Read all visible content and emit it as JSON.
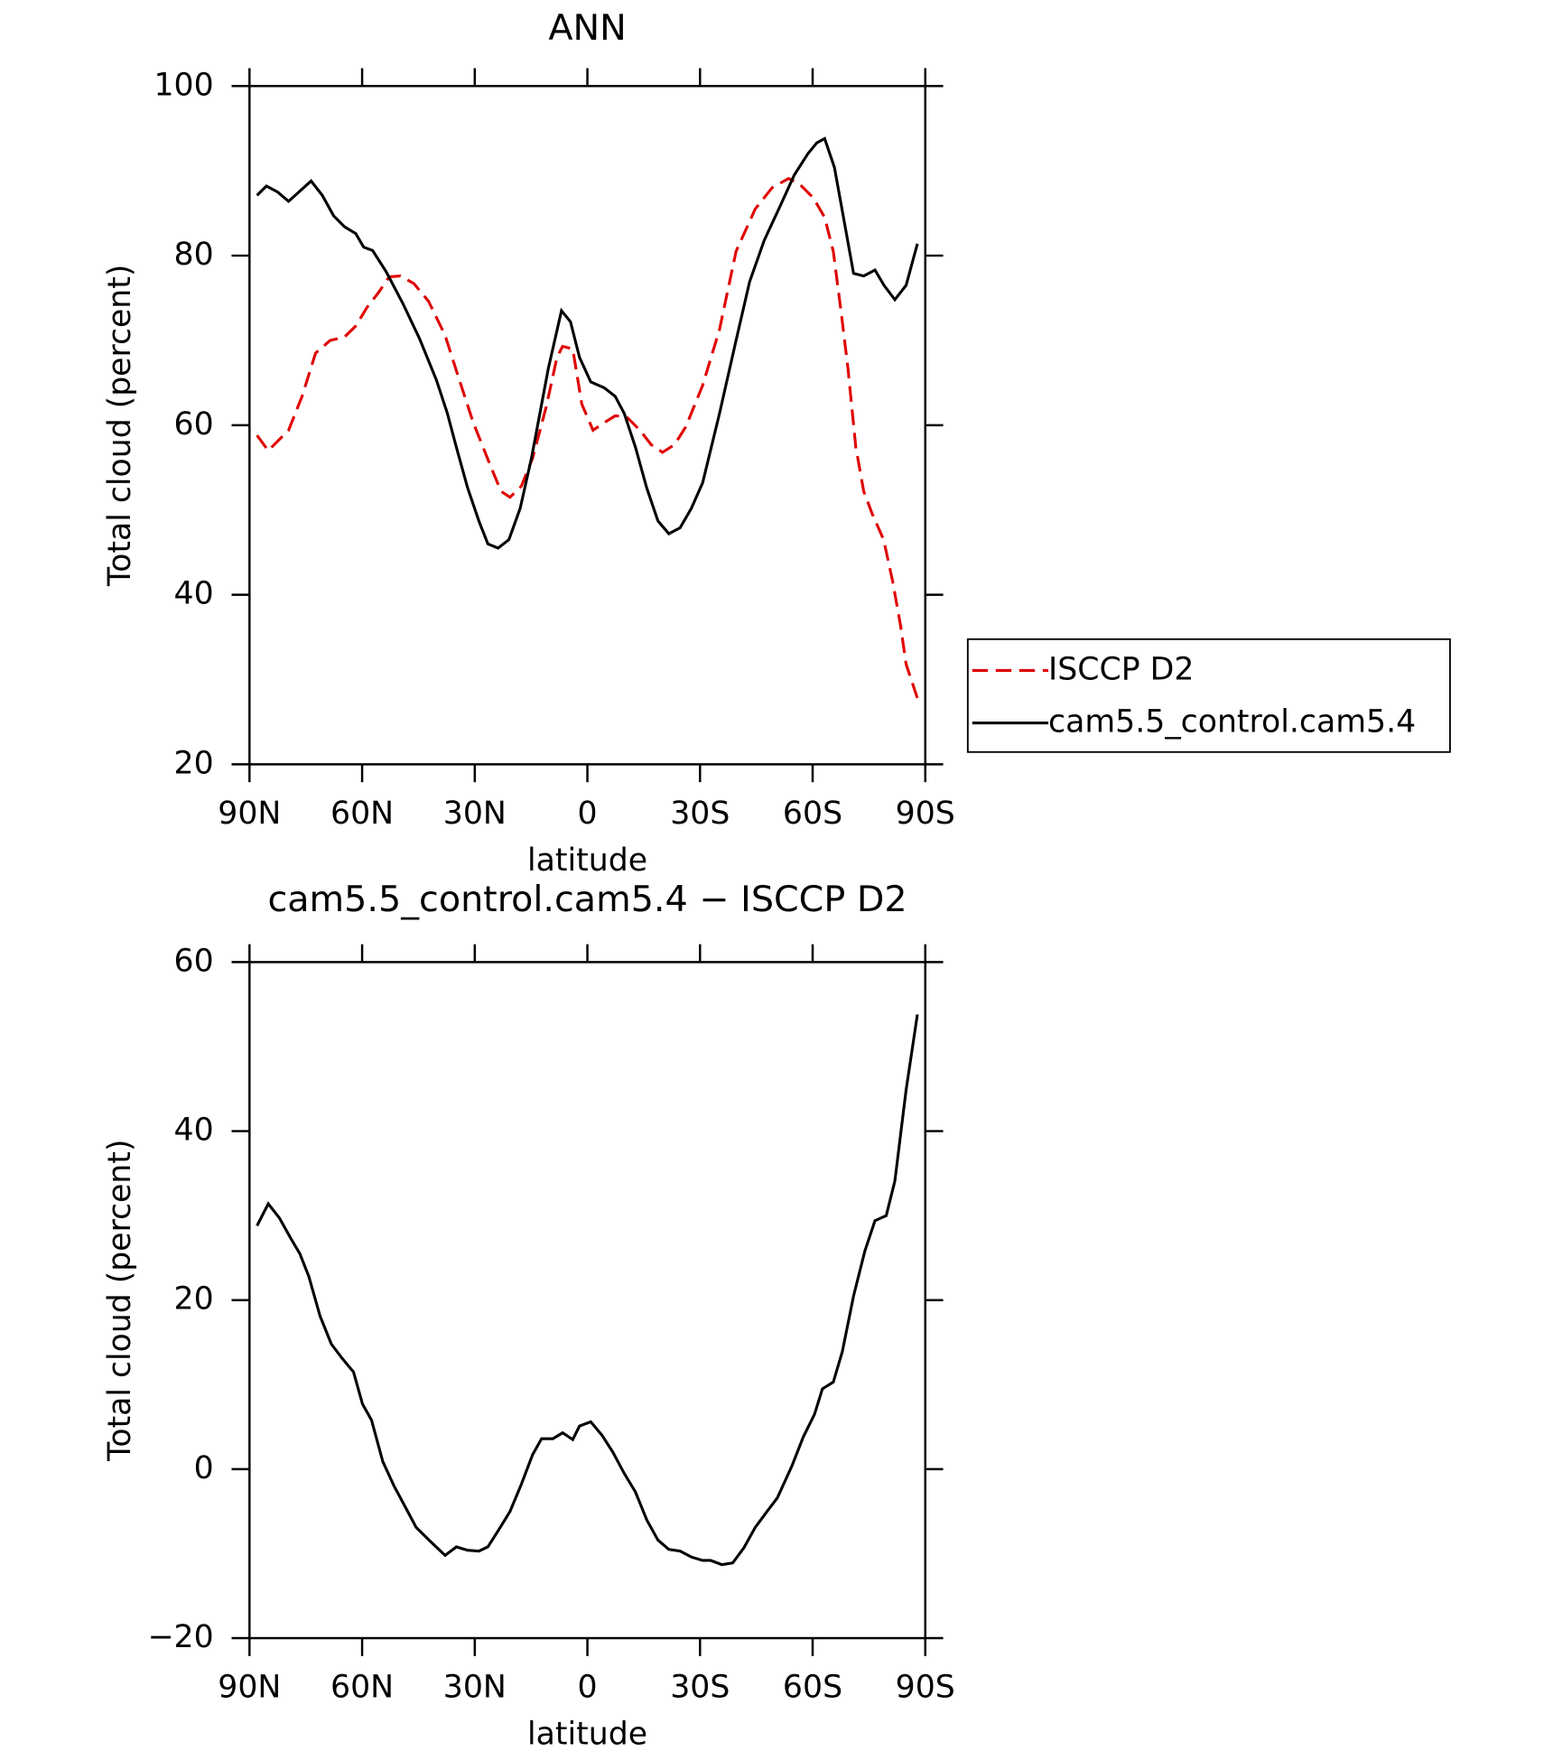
{
  "chart_data": [
    {
      "type": "line",
      "title": "ANN",
      "x_label": "latitude",
      "y_label": "Total cloud (percent)",
      "xlim": [
        90,
        -90
      ],
      "ylim": [
        20,
        100
      ],
      "xticks": [
        {
          "value": 90,
          "label": "90N"
        },
        {
          "value": 60,
          "label": "60N"
        },
        {
          "value": 30,
          "label": "30N"
        },
        0,
        {
          "value": -30,
          "label": "30S"
        },
        {
          "value": -60,
          "label": "60S"
        },
        {
          "value": -90,
          "label": "90S"
        }
      ],
      "yticks": [
        20,
        40,
        60,
        80,
        100
      ],
      "legend": "right",
      "series": [
        {
          "name": "ISCCP D2",
          "color": "#e00000",
          "dashed": true,
          "x": [
            88,
            85,
            79.6,
            76.0,
            72.4,
            68.5,
            64.7,
            61.7,
            58.7,
            55.7,
            52.8,
            49.8,
            46.2,
            42.3,
            37.9,
            34.3,
            30.4,
            25.9,
            23.0,
            20.6,
            17.6,
            14.6,
            11.0,
            8.1,
            6.6,
            3.9,
            1.5,
            -1.5,
            -4.5,
            -7.4,
            -10.4,
            -14.0,
            -17.0,
            -20.0,
            -23.2,
            -26.2,
            -30.7,
            -35.2,
            -39.6,
            -44.7,
            -49.2,
            -53.6,
            -56.6,
            -60.2,
            -63.2,
            -65.5,
            -67.6,
            -69.4,
            -71.5,
            -73.6,
            -75.9,
            -78.9,
            -81.3,
            -83.4,
            -84.9,
            -87.9
          ],
          "values": [
            58.8,
            57.0,
            59.4,
            63.4,
            68.5,
            70.0,
            70.4,
            71.7,
            73.9,
            75.6,
            77.5,
            77.6,
            76.7,
            74.6,
            70.6,
            65.6,
            60.3,
            55.3,
            52.2,
            51.5,
            52.8,
            56.1,
            62.1,
            68.0,
            69.3,
            69.0,
            62.5,
            59.4,
            60.3,
            61.1,
            61.0,
            59.4,
            57.7,
            56.8,
            57.7,
            59.8,
            64.7,
            71.3,
            80.5,
            85.5,
            88.0,
            89.1,
            88.4,
            86.8,
            84.5,
            80.5,
            73.3,
            66.7,
            57.4,
            52.2,
            49.5,
            46.5,
            41.6,
            36.4,
            31.8,
            27.8
          ]
        },
        {
          "name": "cam5.5_control.cam5.4",
          "color": "#000000",
          "dashed": false,
          "x": [
            88,
            85.5,
            82.5,
            79.6,
            73.6,
            70.6,
            67.6,
            64.7,
            61.7,
            59.6,
            57.2,
            53.6,
            49.2,
            44.7,
            40.2,
            37.3,
            34.9,
            31.9,
            28.9,
            26.5,
            23.8,
            20.9,
            17.9,
            14.9,
            10.4,
            6.9,
            4.5,
            2.1,
            -0.9,
            -4.5,
            -7.4,
            -9.8,
            -12.8,
            -15.8,
            -18.8,
            -21.7,
            -24.7,
            -27.7,
            -30.7,
            -35.2,
            -39.6,
            -43.2,
            -47.1,
            -51.5,
            -55.1,
            -58.7,
            -61.1,
            -63.2,
            -65.8,
            -68.5,
            -70.9,
            -73.6,
            -76.6,
            -79.0,
            -81.9,
            -84.9,
            -87.9
          ],
          "values": [
            87.1,
            88.2,
            87.5,
            86.4,
            88.8,
            87.1,
            84.7,
            83.4,
            82.6,
            81.0,
            80.6,
            78.1,
            74.4,
            70.2,
            65.3,
            61.4,
            57.4,
            52.6,
            48.7,
            46.0,
            45.5,
            46.5,
            50.2,
            56.1,
            66.7,
            73.5,
            72.2,
            68.0,
            65.1,
            64.4,
            63.4,
            61.4,
            57.4,
            52.6,
            48.7,
            47.2,
            47.9,
            50.2,
            53.2,
            61.4,
            70.0,
            76.9,
            81.8,
            86.0,
            89.5,
            92.0,
            93.3,
            93.8,
            90.4,
            83.8,
            77.9,
            77.6,
            78.3,
            76.5,
            74.8,
            76.5,
            81.4
          ]
        }
      ]
    },
    {
      "type": "line",
      "title": "cam5.5_control.cam5.4 − ISCCP D2",
      "x_label": "latitude",
      "y_label": "Total cloud (percent)",
      "xlim": [
        90,
        -90
      ],
      "ylim": [
        -20,
        60
      ],
      "xticks": [
        {
          "value": 90,
          "label": "90N"
        },
        {
          "value": 60,
          "label": "60N"
        },
        {
          "value": 30,
          "label": "30N"
        },
        0,
        {
          "value": -30,
          "label": "30S"
        },
        {
          "value": -60,
          "label": "60S"
        },
        {
          "value": -90,
          "label": "90S"
        }
      ],
      "yticks": [
        {
          "value": -20,
          "label": "−20"
        },
        0,
        20,
        40,
        60
      ],
      "color": "#000000",
      "x": [
        88,
        85,
        82,
        79,
        76.6,
        74.2,
        71.2,
        68.2,
        65.3,
        62.3,
        59.9,
        57.5,
        54.5,
        51.5,
        48.6,
        45.6,
        41.7,
        37.9,
        34.9,
        31.9,
        28.9,
        26.5,
        23.5,
        20.6,
        17.6,
        14.6,
        12.2,
        9.2,
        6.6,
        3.9,
        2.1,
        -0.9,
        -3.9,
        -6.8,
        -9.8,
        -12.8,
        -15.8,
        -18.8,
        -21.7,
        -24.7,
        -27.7,
        -30.7,
        -32.8,
        -35.8,
        -38.7,
        -41.7,
        -44.7,
        -47.7,
        -50.6,
        -54.5,
        -57.5,
        -60.5,
        -62.6,
        -65.5,
        -67.9,
        -70.9,
        -73.9,
        -76.6,
        -79.6,
        -81.9,
        -84.9,
        -87.9
      ],
      "values": [
        28.8,
        31.4,
        29.7,
        27.3,
        25.5,
        22.8,
        18.1,
        14.8,
        13.1,
        11.5,
        7.7,
        5.8,
        0.9,
        -2.0,
        -4.4,
        -6.9,
        -8.6,
        -10.2,
        -9.2,
        -9.6,
        -9.7,
        -9.2,
        -7.1,
        -5.0,
        -1.8,
        1.7,
        3.6,
        3.6,
        4.3,
        3.5,
        5.1,
        5.6,
        4.0,
        2.0,
        -0.5,
        -2.7,
        -6.0,
        -8.4,
        -9.5,
        -9.7,
        -10.4,
        -10.8,
        -10.8,
        -11.3,
        -11.1,
        -9.3,
        -6.9,
        -5.1,
        -3.4,
        0.4,
        3.8,
        6.5,
        9.5,
        10.3,
        13.9,
        20.5,
        25.8,
        29.4,
        30.0,
        34.1,
        44.9,
        53.8
      ]
    }
  ]
}
